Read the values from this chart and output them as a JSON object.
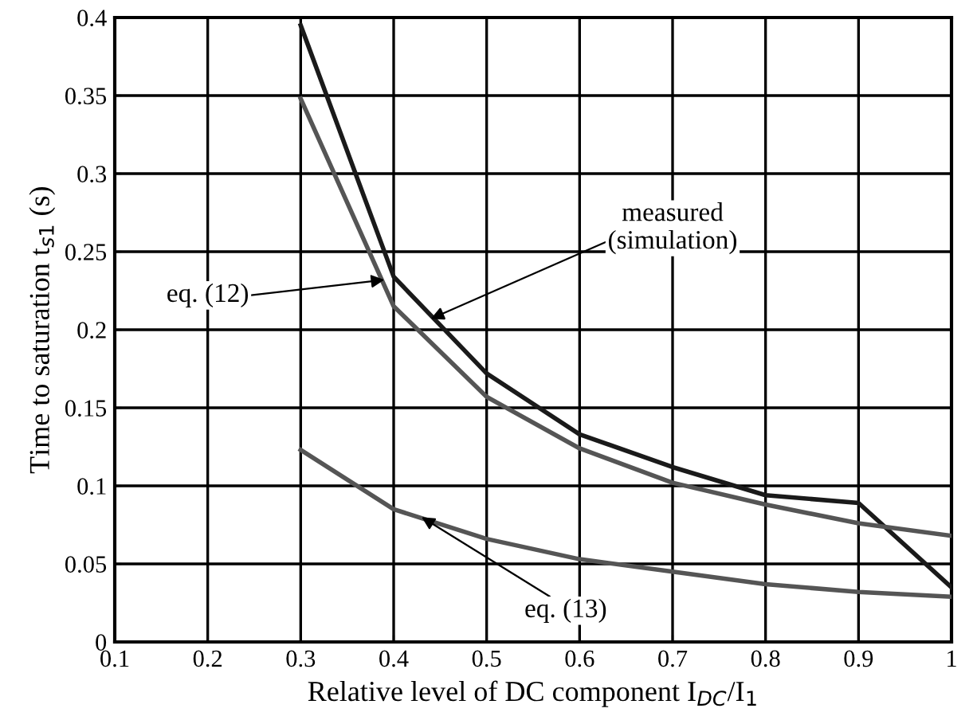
{
  "chart_data": {
    "type": "line",
    "xlabel": "Relative level of DC component I$_{DC}$/I$_{1}$",
    "ylabel": "Time to saturation t$_{s1}$ (s)",
    "x": [
      0.3,
      0.4,
      0.5,
      0.6,
      0.7,
      0.8,
      0.9,
      1
    ],
    "series": [
      {
        "color": "#1a1a1a",
        "values": [
          0.395,
          0.234,
          0.172,
          0.133,
          0.112,
          0.094,
          0.089,
          0.035
        ]
      },
      {
        "color": "#555555",
        "values": [
          0.348,
          0.215,
          0.157,
          0.124,
          0.102,
          0.088,
          0.076,
          0.068
        ]
      },
      {
        "color": "#555555",
        "values": [
          0.123,
          0.085,
          0.066,
          0.053,
          0.045,
          0.037,
          0.032,
          0.029
        ]
      }
    ],
    "annotations": [
      {
        "text": "measured\n(simulation)",
        "x": 0.44,
        "y": 0.207
      },
      {
        "text": "eq. (12)",
        "x": 0.39,
        "y": 0.232
      },
      {
        "text": "eq. (13)",
        "x": 0.43,
        "y": 0.08
      }
    ],
    "xlim": [
      0.1,
      1
    ],
    "ylim": [
      0,
      0.4
    ],
    "xticks": [
      0.1,
      0.2,
      0.3,
      0.4,
      0.5,
      0.6,
      0.7,
      0.8,
      0.9,
      1
    ],
    "yticks": [
      0,
      0.05,
      0.1,
      0.15,
      0.2,
      0.25,
      0.3,
      0.35,
      0.4
    ],
    "grid": true,
    "marker": "none",
    "line_style": "solid"
  }
}
